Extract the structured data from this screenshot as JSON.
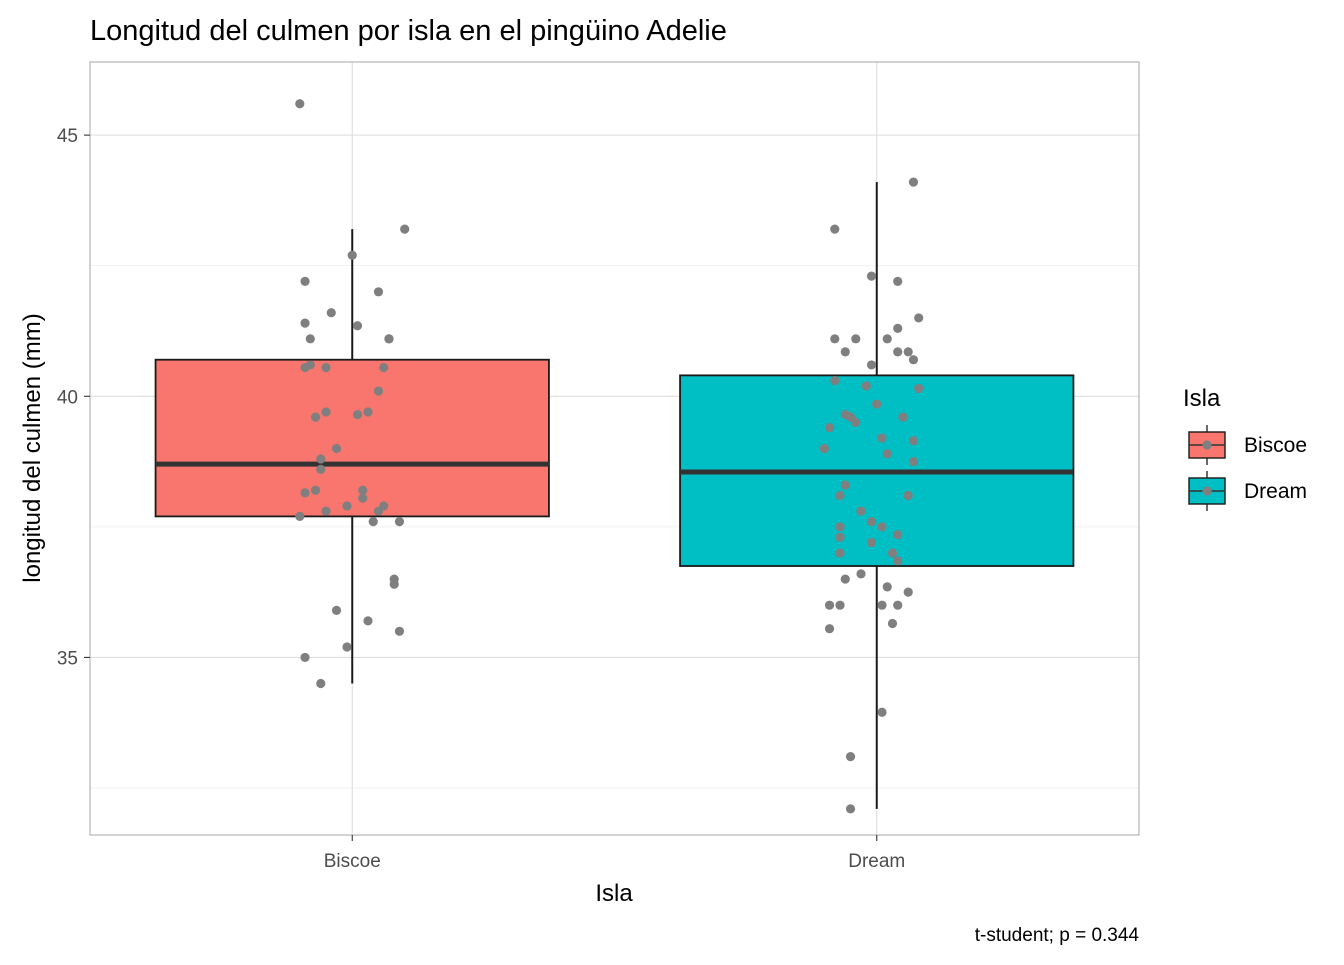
{
  "chart_data": {
    "type": "boxplot",
    "title": "Longitud del culmen por isla en el pingüino Adelie",
    "xlabel": "Isla",
    "ylabel": "longitud del culmen (mm)",
    "caption": "t-student; p = 0.344",
    "categories": [
      "Biscoe",
      "Dream"
    ],
    "ylim": [
      31.6,
      46.4
    ],
    "y_ticks": [
      35,
      40,
      45
    ],
    "grid": true,
    "legend": {
      "title": "Isla",
      "position": "right",
      "entries": [
        "Biscoe",
        "Dream"
      ]
    },
    "series": [
      {
        "name": "Biscoe",
        "color": "#F8766D",
        "stats": {
          "min": 34.5,
          "q1": 37.7,
          "median": 38.7,
          "q3": 40.7,
          "max": 43.2
        },
        "points": [
          [
            -0.1,
            45.6
          ],
          [
            0.1,
            43.2
          ],
          [
            0.0,
            42.7
          ],
          [
            -0.09,
            42.2
          ],
          [
            0.05,
            42.0
          ],
          [
            -0.04,
            41.6
          ],
          [
            -0.09,
            41.4
          ],
          [
            0.01,
            41.35
          ],
          [
            0.07,
            41.1
          ],
          [
            -0.08,
            41.1
          ],
          [
            0.07,
            41.1
          ],
          [
            -0.09,
            40.55
          ],
          [
            -0.08,
            40.6
          ],
          [
            -0.05,
            40.55
          ],
          [
            0.06,
            40.55
          ],
          [
            0.05,
            40.1
          ],
          [
            -0.05,
            39.7
          ],
          [
            -0.07,
            39.6
          ],
          [
            0.01,
            39.65
          ],
          [
            0.03,
            39.7
          ],
          [
            -0.03,
            39.0
          ],
          [
            -0.06,
            38.8
          ],
          [
            -0.06,
            38.6
          ],
          [
            0.02,
            38.2
          ],
          [
            -0.09,
            38.15
          ],
          [
            -0.07,
            38.2
          ],
          [
            0.02,
            38.05
          ],
          [
            -0.01,
            37.9
          ],
          [
            0.06,
            37.9
          ],
          [
            0.05,
            37.8
          ],
          [
            -0.05,
            37.8
          ],
          [
            -0.1,
            37.7
          ],
          [
            0.04,
            37.6
          ],
          [
            0.09,
            37.6
          ],
          [
            0.08,
            36.5
          ],
          [
            0.08,
            36.4
          ],
          [
            -0.03,
            35.9
          ],
          [
            0.03,
            35.7
          ],
          [
            0.09,
            35.5
          ],
          [
            -0.01,
            35.2
          ],
          [
            -0.09,
            35.0
          ],
          [
            -0.06,
            34.5
          ]
        ]
      },
      {
        "name": "Dream",
        "color": "#00BFC4",
        "stats": {
          "min": 32.1,
          "q1": 36.75,
          "median": 38.55,
          "q3": 40.4,
          "max": 44.1
        },
        "points": [
          [
            0.07,
            44.1
          ],
          [
            -0.08,
            43.2
          ],
          [
            -0.01,
            42.3
          ],
          [
            0.04,
            42.2
          ],
          [
            0.08,
            41.5
          ],
          [
            0.04,
            41.3
          ],
          [
            -0.08,
            41.1
          ],
          [
            -0.04,
            41.1
          ],
          [
            0.02,
            41.1
          ],
          [
            0.04,
            40.85
          ],
          [
            -0.06,
            40.85
          ],
          [
            0.06,
            40.85
          ],
          [
            0.07,
            40.7
          ],
          [
            -0.01,
            40.6
          ],
          [
            -0.08,
            40.3
          ],
          [
            -0.02,
            40.2
          ],
          [
            0.08,
            40.15
          ],
          [
            0.0,
            39.85
          ],
          [
            -0.06,
            39.65
          ],
          [
            -0.05,
            39.6
          ],
          [
            0.05,
            39.6
          ],
          [
            -0.09,
            39.4
          ],
          [
            -0.04,
            39.5
          ],
          [
            0.01,
            39.2
          ],
          [
            0.07,
            39.15
          ],
          [
            0.02,
            38.9
          ],
          [
            -0.1,
            39.0
          ],
          [
            0.07,
            38.75
          ],
          [
            0.06,
            38.1
          ],
          [
            -0.07,
            38.1
          ],
          [
            -0.06,
            38.3
          ],
          [
            -0.03,
            37.8
          ],
          [
            -0.07,
            37.5
          ],
          [
            -0.01,
            37.6
          ],
          [
            0.01,
            37.5
          ],
          [
            0.04,
            37.35
          ],
          [
            -0.07,
            37.3
          ],
          [
            -0.01,
            37.2
          ],
          [
            0.03,
            37.0
          ],
          [
            -0.07,
            37.0
          ],
          [
            0.04,
            36.85
          ],
          [
            -0.03,
            36.6
          ],
          [
            -0.06,
            36.5
          ],
          [
            0.02,
            36.35
          ],
          [
            0.06,
            36.25
          ],
          [
            0.01,
            36.0
          ],
          [
            0.04,
            36.0
          ],
          [
            -0.09,
            36.0
          ],
          [
            -0.07,
            36.0
          ],
          [
            0.03,
            35.65
          ],
          [
            -0.09,
            35.55
          ],
          [
            0.01,
            33.95
          ],
          [
            -0.05,
            33.1
          ],
          [
            -0.05,
            32.1
          ]
        ]
      }
    ]
  }
}
